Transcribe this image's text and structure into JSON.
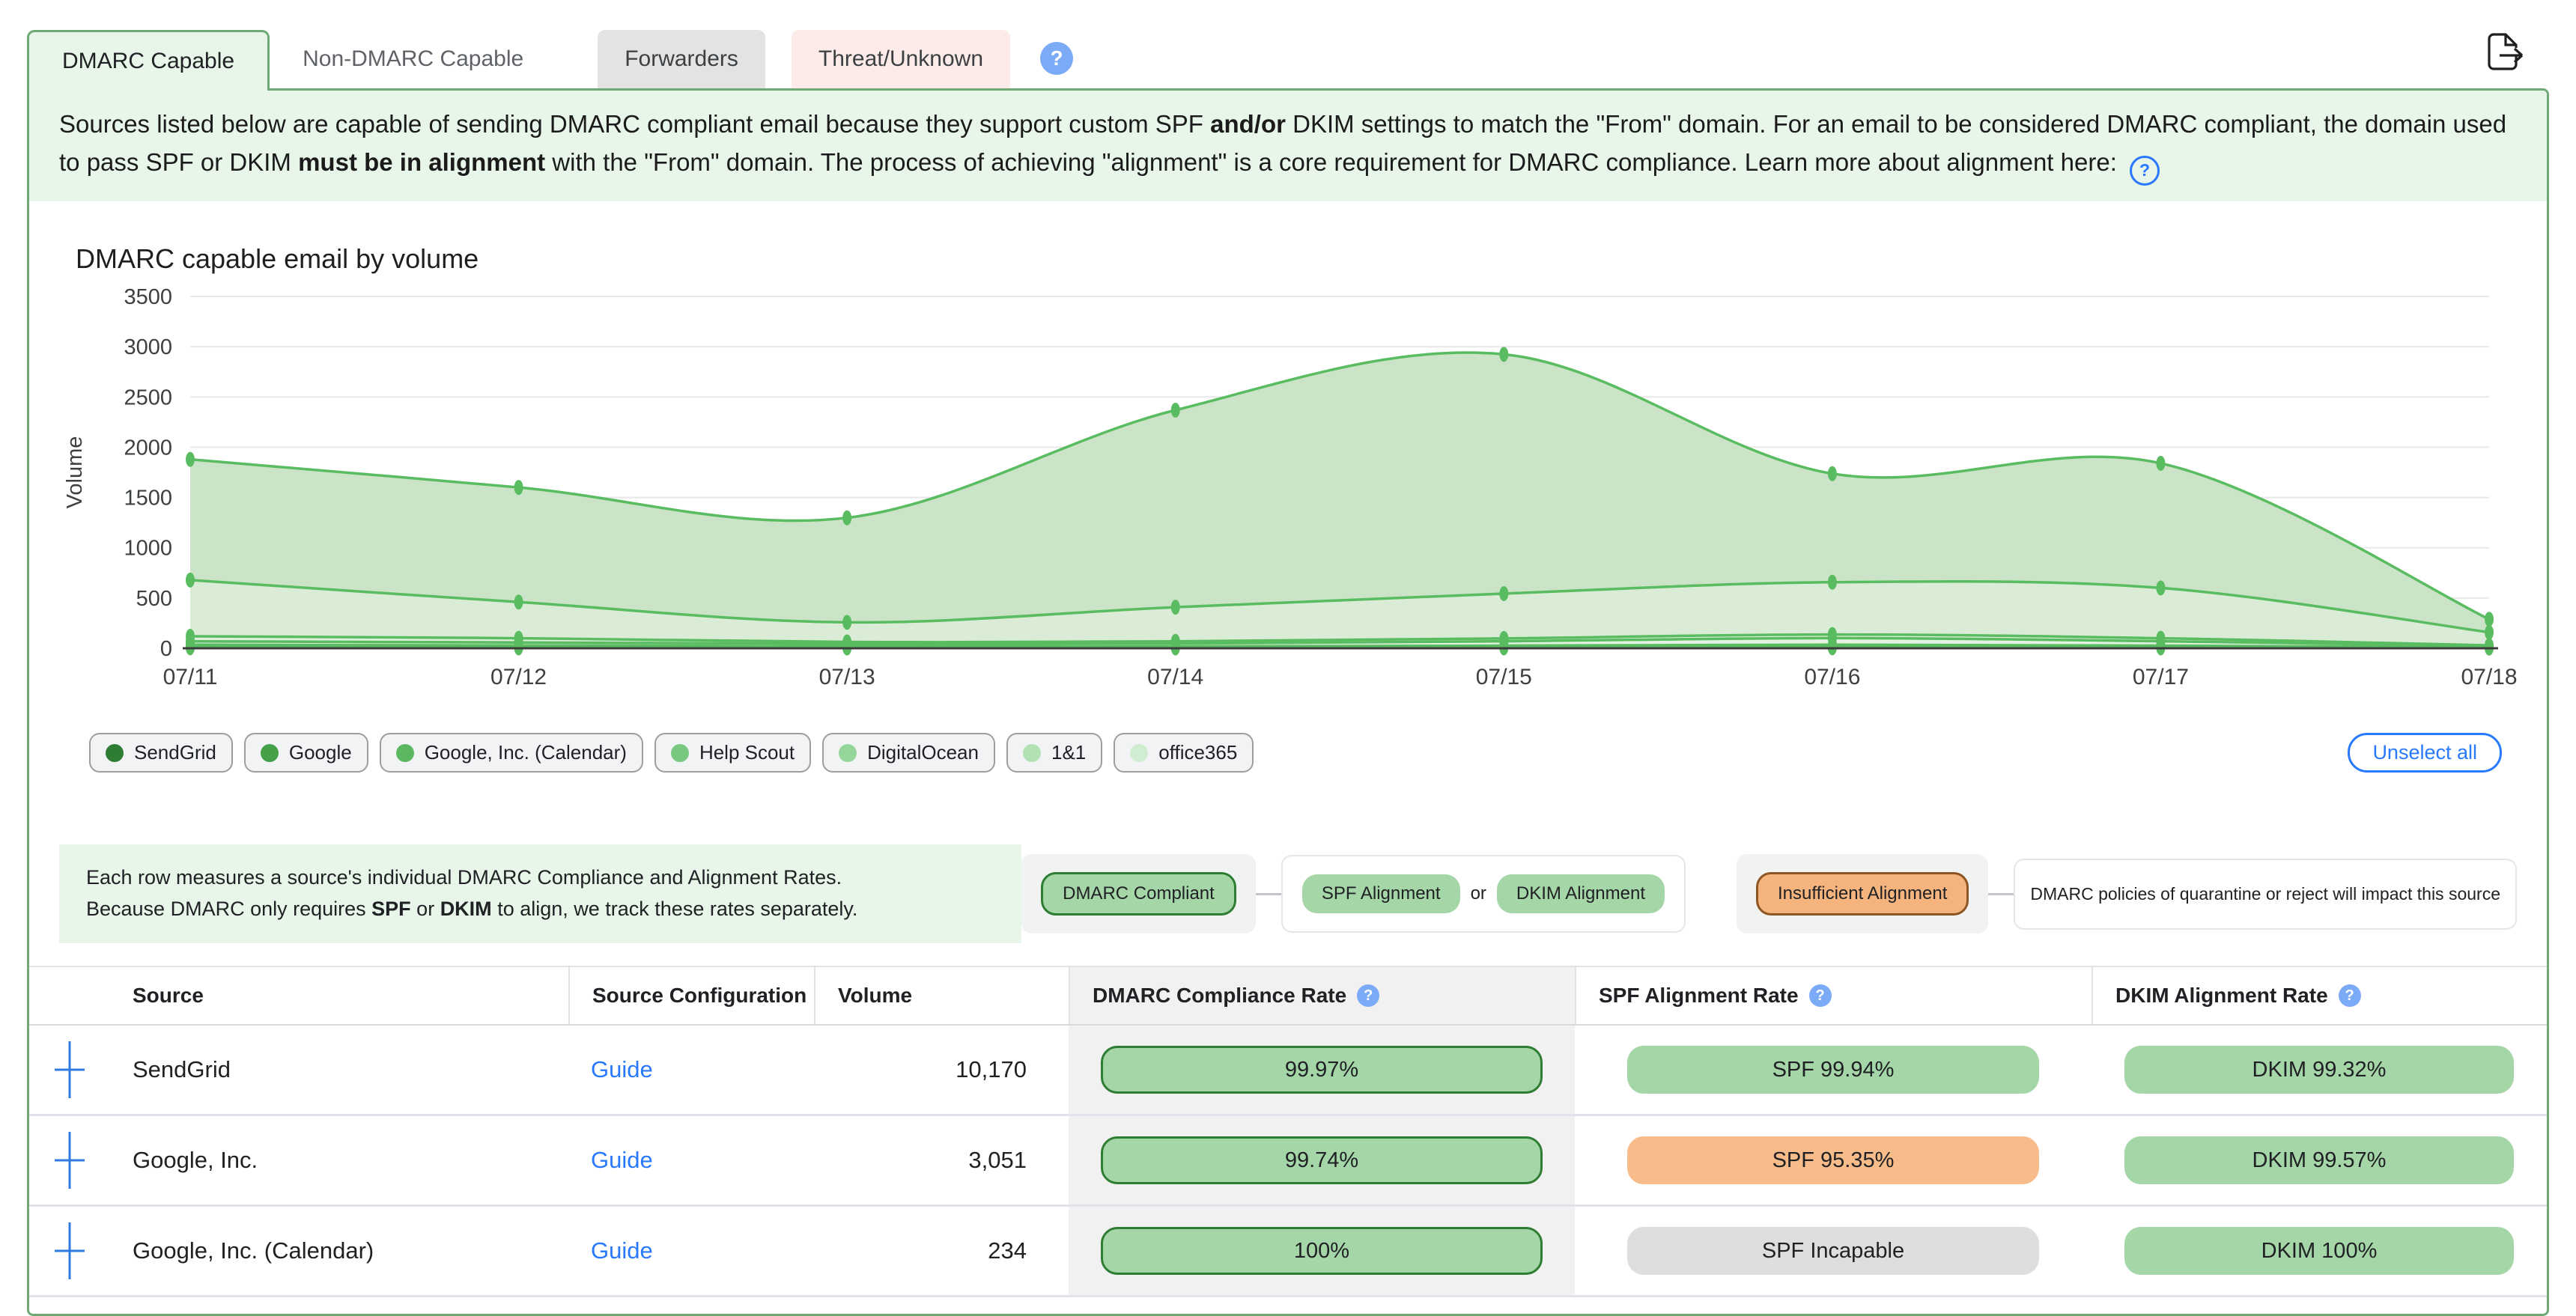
{
  "header": {
    "tabs": [
      {
        "label": "DMARC Capable",
        "active": true
      },
      {
        "label": "Non-DMARC Capable",
        "active": false
      },
      {
        "label": "Forwarders",
        "active": false
      },
      {
        "label": "Threat/Unknown",
        "active": false
      }
    ],
    "help_glyph": "?"
  },
  "banner": {
    "help_glyph": "?",
    "segments": [
      {
        "t": "Sources listed below are capable of sending DMARC compliant email because they support custom SPF "
      },
      {
        "t": "and/or",
        "b": true
      },
      {
        "t": " DKIM settings to match the \"From\" domain. For an email to be considered DMARC compliant, the domain used to pass SPF or DKIM "
      },
      {
        "t": "must be in alignment",
        "b": true
      },
      {
        "t": " with the \"From\" domain. The process of achieving \"alignment\" is a core requirement for DMARC compliance. Learn more about alignment here: "
      }
    ]
  },
  "chart_data": {
    "type": "area",
    "stacked": true,
    "title": "DMARC capable email by volume",
    "xlabel": "",
    "ylabel": "Volume",
    "ylim": [
      0,
      3500
    ],
    "yticks": [
      0,
      500,
      1000,
      1500,
      2000,
      2500,
      3000,
      3500
    ],
    "grid": true,
    "legend_position": "bottom",
    "x": [
      "07/11",
      "07/12",
      "07/13",
      "07/14",
      "07/15",
      "07/16",
      "07/17",
      "07/18"
    ],
    "series": [
      {
        "name": "SendGrid",
        "color": "#2e7d32",
        "values": [
          1200,
          1140,
          1040,
          1960,
          2380,
          1080,
          1240,
          130
        ]
      },
      {
        "name": "Google",
        "color": "#43a047",
        "values": [
          560,
          360,
          195,
          340,
          446,
          520,
          500,
          130
        ]
      },
      {
        "name": "Google, Inc. (Calendar)",
        "color": "#5cb860",
        "values": [
          50,
          42,
          18,
          22,
          28,
          36,
          30,
          8
        ]
      },
      {
        "name": "Help Scout",
        "color": "#79c87f",
        "values": [
          34,
          30,
          24,
          28,
          44,
          66,
          44,
          10
        ]
      },
      {
        "name": "DigitalOcean",
        "color": "#95d69a",
        "values": [
          20,
          16,
          12,
          10,
          14,
          20,
          14,
          6
        ]
      },
      {
        "name": "1&1",
        "color": "#b2e2b4",
        "values": [
          10,
          8,
          6,
          6,
          8,
          10,
          8,
          3
        ]
      },
      {
        "name": "office365",
        "color": "#d0edd1",
        "values": [
          5,
          4,
          3,
          3,
          4,
          5,
          4,
          2
        ]
      }
    ],
    "line_color": "#5abc61",
    "band_fills": [
      "#cbe3c6",
      "#daecd6",
      "#e1f0dd",
      "#e4f2e1",
      "#e7f4e4",
      "#eaf6e7",
      "#edf8ea"
    ]
  },
  "unselect_button": {
    "label": "Unselect all"
  },
  "explainer": {
    "line1": [
      {
        "t": "Each row measures a source's individual DMARC Compliance and Alignment Rates."
      }
    ],
    "line2": [
      {
        "t": "Because DMARC only requires "
      },
      {
        "t": "SPF",
        "b": true
      },
      {
        "t": " or "
      },
      {
        "t": "DKIM",
        "b": true
      },
      {
        "t": " to align, we track these rates separately."
      }
    ]
  },
  "badge_legend": {
    "compliant": "DMARC Compliant",
    "spf": "SPF Alignment",
    "or": "or",
    "dkim": "DKIM Alignment",
    "insufficient": "Insufficient Alignment",
    "note": "DMARC policies of quarantine or reject will impact this source"
  },
  "table": {
    "columns": {
      "source": "Source",
      "config": "Source Configuration",
      "volume": "Volume",
      "compliance": "DMARC Compliance Rate",
      "spf": "SPF Alignment Rate",
      "dkim": "DKIM Alignment Rate"
    },
    "help_glyph": "?",
    "rows": [
      {
        "source": "SendGrid",
        "config": "Guide",
        "volume": "10,170",
        "compliance": "99.97%",
        "spf": {
          "label": "SPF 99.94%",
          "variant": "green"
        },
        "dkim": {
          "label": "DKIM 99.32%",
          "variant": "green"
        }
      },
      {
        "source": "Google, Inc.",
        "config": "Guide",
        "volume": "3,051",
        "compliance": "99.74%",
        "spf": {
          "label": "SPF 95.35%",
          "variant": "orange"
        },
        "dkim": {
          "label": "DKIM 99.57%",
          "variant": "green"
        }
      },
      {
        "source": "Google, Inc. (Calendar)",
        "config": "Guide",
        "volume": "234",
        "compliance": "100%",
        "spf": {
          "label": "SPF Incapable",
          "variant": "gray"
        },
        "dkim": {
          "label": "DKIM 100%",
          "variant": "green"
        }
      }
    ]
  }
}
